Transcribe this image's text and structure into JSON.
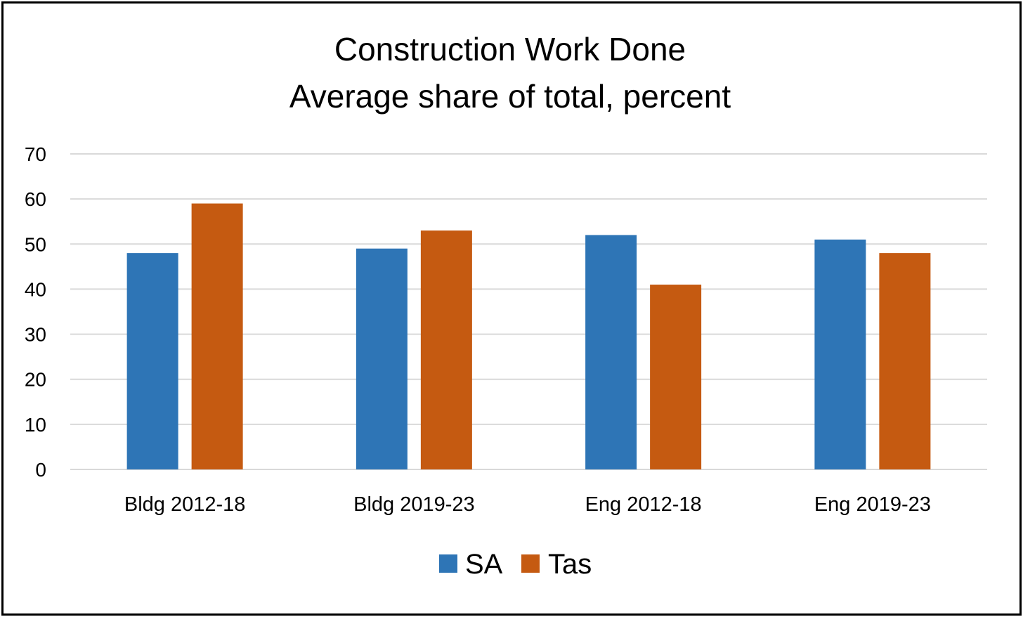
{
  "chart_data": {
    "type": "bar",
    "title": "Construction Work Done",
    "subtitle": "Average share of total, percent",
    "categories": [
      "Bldg 2012-18",
      "Bldg 2019-23",
      "Eng 2012-18",
      "Eng 2019-23"
    ],
    "series": [
      {
        "name": "SA",
        "color": "#2e75b6",
        "values": [
          48,
          49,
          52,
          51
        ]
      },
      {
        "name": "Tas",
        "color": "#c55a11",
        "values": [
          59,
          53,
          41,
          48
        ]
      }
    ],
    "ylim": [
      0,
      70
    ],
    "yticks": [
      0,
      10,
      20,
      30,
      40,
      50,
      60,
      70
    ],
    "xlabel": "",
    "ylabel": "",
    "grid": true,
    "legend_position": "bottom"
  }
}
